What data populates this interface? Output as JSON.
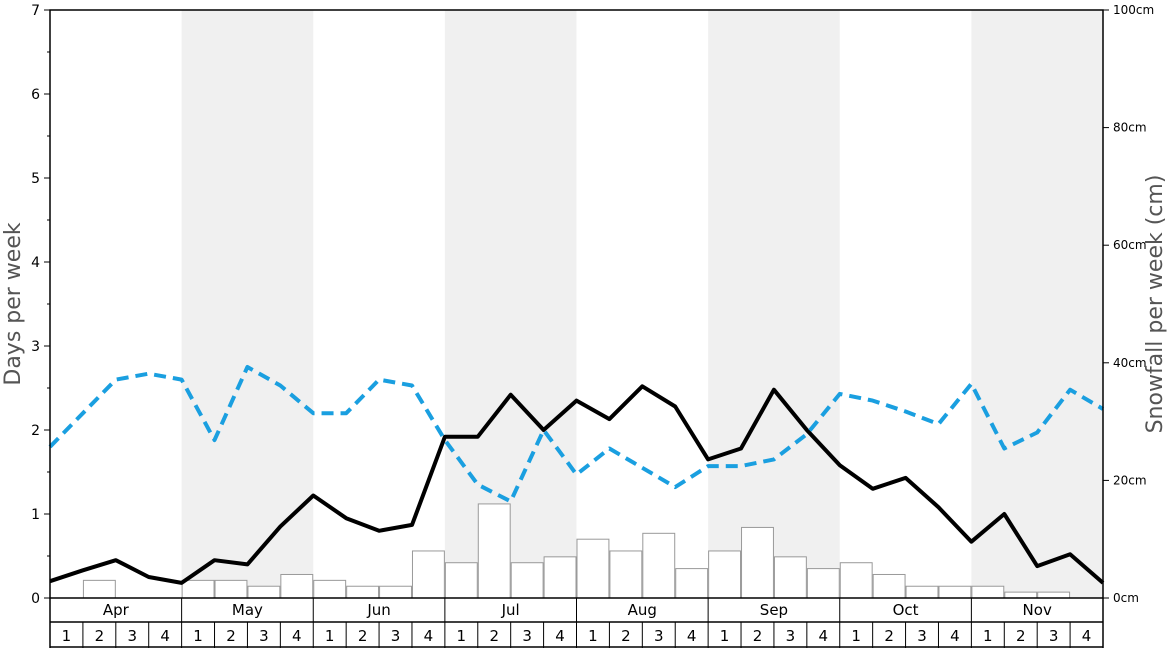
{
  "chart_data": {
    "type": "bar",
    "months": [
      "Apr",
      "May",
      "Jun",
      "Jul",
      "Aug",
      "Sep",
      "Oct",
      "Nov"
    ],
    "weeks": [
      "1",
      "2",
      "3",
      "4"
    ],
    "ylabel_left": "Days per week",
    "ylabel_right": "Snowfall per week (cm)",
    "ylim_left": [
      0,
      7
    ],
    "ylim_right": [
      0,
      100
    ],
    "left_ticks": [
      "0",
      "1",
      "2",
      "3",
      "4",
      "5",
      "6",
      "7"
    ],
    "right_ticks": [
      "0cm",
      "20cm",
      "40cm",
      "60cm",
      "80cm",
      "100cm"
    ],
    "grid": false,
    "series": [
      {
        "kind": "bar",
        "axis": "right",
        "unit": "cm",
        "values": [
          0,
          3,
          0,
          0,
          3,
          3,
          2,
          4,
          3,
          2,
          2,
          8,
          6,
          16,
          6,
          7,
          10,
          8,
          11,
          5,
          8,
          12,
          7,
          5,
          6,
          4,
          2,
          2,
          2,
          1,
          1,
          0
        ]
      },
      {
        "kind": "line",
        "axis": "left",
        "style": "solid",
        "color": "#000000",
        "values": [
          0.2,
          0.33,
          0.45,
          0.25,
          0.18,
          0.45,
          0.4,
          0.85,
          1.22,
          0.95,
          0.8,
          0.87,
          1.92,
          1.92,
          2.42,
          2.0,
          2.35,
          2.13,
          2.52,
          2.28,
          1.65,
          1.78,
          2.48,
          2.0,
          1.58,
          1.3,
          1.43,
          1.08,
          0.67,
          1.0,
          0.38,
          0.52,
          0.18
        ]
      },
      {
        "kind": "line",
        "axis": "left",
        "style": "dashed",
        "color": "#1a9fe0",
        "values": [
          1.8,
          2.2,
          2.6,
          2.67,
          2.6,
          1.88,
          2.75,
          2.53,
          2.2,
          2.2,
          2.6,
          2.53,
          1.88,
          1.35,
          1.15,
          2.0,
          1.47,
          1.78,
          1.55,
          1.32,
          1.57,
          1.57,
          1.65,
          1.95,
          2.43,
          2.35,
          2.22,
          2.07,
          2.55,
          1.78,
          1.97,
          2.48,
          2.25
        ]
      }
    ],
    "colors": {
      "band_shade": "#f0f0f0",
      "bar_fill": "#ffffff",
      "bar_stroke": "#999999",
      "axis_title": "#555555"
    }
  }
}
